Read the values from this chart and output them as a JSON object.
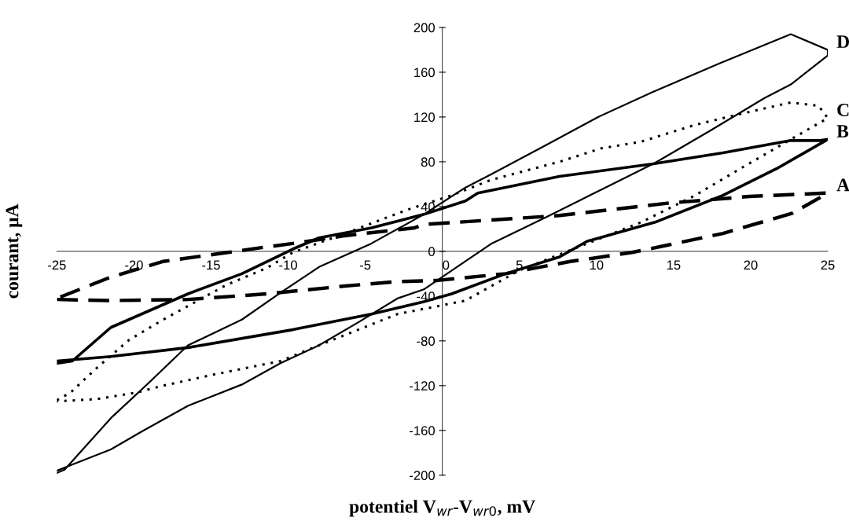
{
  "chart_data": {
    "type": "line",
    "xlabel": "potentiel V$_{wr}$-V$_{wr0}$, mV",
    "ylabel": "courant, μA",
    "xlim": [
      -25,
      25
    ],
    "xticks": [
      -25,
      -20,
      -15,
      -10,
      -5,
      0,
      5,
      10,
      15,
      20,
      25
    ],
    "ylim": [
      -200,
      200
    ],
    "yticks": [
      -200,
      -160,
      -120,
      -80,
      -40,
      0,
      40,
      80,
      120,
      160,
      200
    ],
    "grid": false,
    "legend": false,
    "marker": "none",
    "series": [
      {
        "name": "A",
        "color": "#000000",
        "line_style": "dashed",
        "x": [
          -25,
          -21.5,
          -16.5,
          -11.4,
          -6.3,
          -2.9,
          -0.3,
          4.1,
          8.3,
          10.1,
          12.3,
          14.6,
          18.2,
          22.7,
          25,
          24.8,
          19.9,
          14.6,
          7.6,
          -1.2,
          -1.8,
          -6.3,
          -9.7,
          -11.9,
          -13.9,
          -18.1,
          -21.5,
          -25
        ],
        "values": [
          -43,
          -44,
          -43,
          -38,
          -31,
          -27,
          -26,
          -20,
          -9,
          -5.5,
          -1,
          5.5,
          16,
          34,
          52,
          52,
          49,
          43,
          32,
          24,
          21,
          14,
          7,
          3,
          -1,
          -9,
          -23,
          -42
        ]
      },
      {
        "name": "B",
        "color": "#000000",
        "line_style": "solid",
        "x": [
          -25,
          -21.5,
          -16.5,
          -9.7,
          -4.6,
          -1.2,
          0.6,
          4.1,
          7.6,
          9.4,
          13.8,
          18.2,
          21.7,
          25,
          24.5,
          22.6,
          18.2,
          13.6,
          7.6,
          2.3,
          1.5,
          -1.2,
          -4.6,
          -8,
          -9.7,
          -13,
          -16.5,
          -21.5,
          -24,
          -25
        ],
        "values": [
          -98,
          -94,
          -86,
          -70,
          -56,
          -45,
          -38,
          -20,
          -5,
          9,
          26,
          50,
          74,
          100,
          99,
          99,
          88,
          78,
          67,
          52,
          45,
          33,
          21,
          12,
          2,
          -20,
          -38,
          -68,
          -98,
          -100
        ]
      },
      {
        "name": "C",
        "color": "#000000",
        "line_style": "dotted",
        "x": [
          -25,
          -24.1,
          -22.4,
          -20.3,
          -18.1,
          -14,
          -11.4,
          -9.7,
          -6.3,
          -2.3,
          0.6,
          3.2,
          7.6,
          10.3,
          12.9,
          16.4,
          19.1,
          22.6,
          24.4,
          25,
          23.1,
          19.1,
          16.4,
          12.9,
          9.4,
          5,
          1.5,
          -0.3,
          -2.9,
          -8,
          -10.5,
          -14.8,
          -18.1,
          -19.8,
          -22.4,
          -25
        ],
        "values": [
          -133,
          -126,
          -104,
          -79,
          -61,
          -30,
          -15,
          -1,
          16,
          37,
          50,
          64,
          80,
          92,
          98,
          113,
          122,
          133,
          130,
          119,
          104,
          72,
          50,
          26,
          7,
          -17,
          -44,
          -49,
          -56,
          -84,
          -98,
          -110,
          -120,
          -126,
          -132,
          -134
        ]
      },
      {
        "name": "D",
        "color": "#000000",
        "line_style": "solid",
        "x": [
          -25,
          -24.5,
          -21.5,
          -19,
          -16.5,
          -13,
          -10.5,
          -8,
          -4.6,
          -1.2,
          1.5,
          3.2,
          6.6,
          10.1,
          13.6,
          18,
          22.6,
          25,
          25,
          22.6,
          20.9,
          17.4,
          13.8,
          10.3,
          6.8,
          3.2,
          -1.2,
          -2.9,
          -5.4,
          -8,
          -10.5,
          -13,
          -16.5,
          -19.5,
          -21.5,
          -24.1,
          -25
        ],
        "values": [
          -198,
          -195,
          -149,
          -117,
          -84,
          -61,
          -37,
          -14,
          7,
          33,
          57,
          69,
          94,
          120,
          142,
          168,
          194,
          180,
          175,
          149,
          137,
          108,
          79,
          55,
          31,
          7,
          -34,
          -42,
          -63,
          -84,
          -100,
          -119,
          -138,
          -161,
          -177,
          -191,
          -196
        ]
      }
    ]
  }
}
